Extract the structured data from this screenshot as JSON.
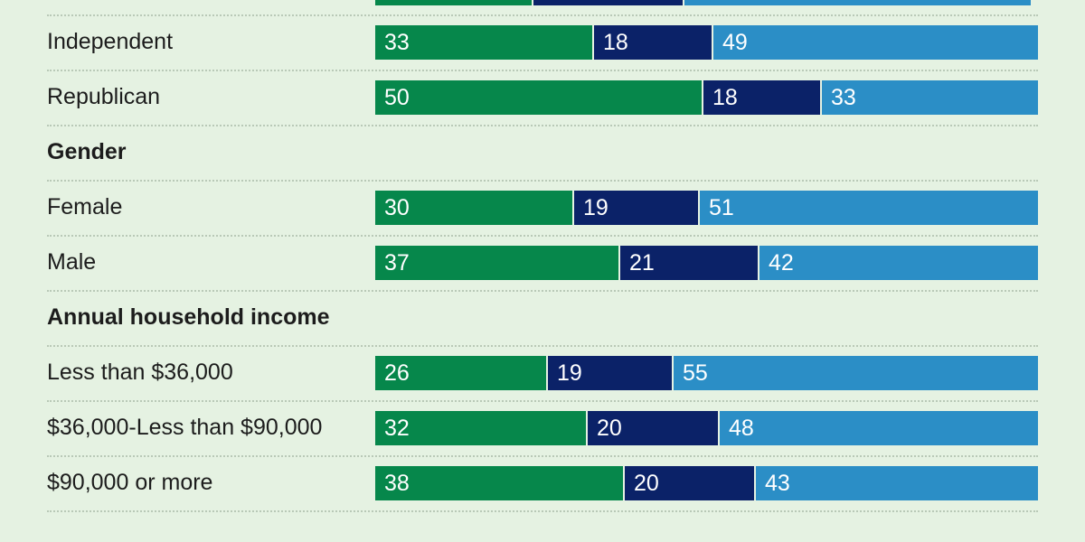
{
  "chart_data": {
    "type": "bar",
    "orientation": "horizontal",
    "stacked": true,
    "xlim": [
      0,
      100
    ],
    "colors": [
      "#06874b",
      "#0b2268",
      "#2b8ec6"
    ],
    "rows": [
      {
        "kind": "group",
        "label": "Independent",
        "values": [
          33,
          18,
          49
        ]
      },
      {
        "kind": "group",
        "label": "Republican",
        "values": [
          50,
          18,
          33
        ]
      },
      {
        "kind": "section",
        "label": "Gender"
      },
      {
        "kind": "group",
        "label": "Female",
        "values": [
          30,
          19,
          51
        ]
      },
      {
        "kind": "group",
        "label": "Male",
        "values": [
          37,
          21,
          42
        ]
      },
      {
        "kind": "section",
        "label": "Annual household income"
      },
      {
        "kind": "group",
        "label": "Less than $36,000",
        "values": [
          26,
          19,
          55
        ]
      },
      {
        "kind": "group",
        "label": "$36,000-Less than $90,000",
        "values": [
          32,
          20,
          48
        ]
      },
      {
        "kind": "group",
        "label": "$90,000 or more",
        "values": [
          38,
          20,
          43
        ]
      }
    ]
  }
}
